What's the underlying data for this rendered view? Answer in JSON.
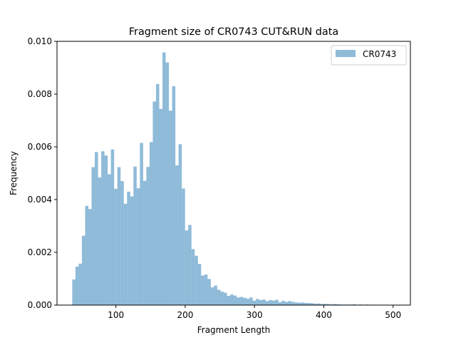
{
  "chart_data": {
    "type": "bar",
    "title": "Fragment size of CR0743 CUT&RUN data",
    "xlabel": "Fragment Length",
    "ylabel": "Frequency",
    "xlim": [
      15,
      525
    ],
    "ylim": [
      0,
      0.01
    ],
    "xticks": [
      100,
      200,
      300,
      400,
      500
    ],
    "yticks": [
      0.0,
      0.002,
      0.004,
      0.006,
      0.008,
      0.01
    ],
    "ytick_labels": [
      "0.000",
      "0.002",
      "0.004",
      "0.006",
      "0.008",
      "0.010"
    ],
    "grid": false,
    "legend_position": "top-right",
    "series": [
      {
        "name": "CR0743",
        "color": "#1f77b4",
        "alpha": 0.5,
        "bin_start": 37,
        "bin_width": 4.65,
        "values": [
          0.00097,
          0.00146,
          0.00157,
          0.00263,
          0.00376,
          0.00364,
          0.00523,
          0.0058,
          0.00484,
          0.00583,
          0.00567,
          0.00496,
          0.0059,
          0.00441,
          0.00523,
          0.0047,
          0.00384,
          0.0043,
          0.00412,
          0.00525,
          0.00443,
          0.00615,
          0.00471,
          0.00524,
          0.00618,
          0.00772,
          0.00838,
          0.00744,
          0.00958,
          0.0092,
          0.00737,
          0.0083,
          0.0053,
          0.0061,
          0.00442,
          0.00283,
          0.00304,
          0.00212,
          0.00187,
          0.00156,
          0.00112,
          0.00116,
          0.00099,
          0.00067,
          0.00074,
          0.00058,
          0.00051,
          0.00047,
          0.00035,
          0.0004,
          0.00036,
          0.00029,
          0.00031,
          0.00028,
          0.00024,
          0.00029,
          0.00017,
          0.00023,
          0.00019,
          0.00021,
          0.00015,
          0.00019,
          0.00017,
          0.0002,
          0.00011,
          0.00016,
          0.00012,
          0.00015,
          0.00012,
          0.0001,
          9e-05,
          0.0001,
          8e-05,
          8e-05,
          7e-05,
          5e-05,
          6e-05,
          4e-05,
          5e-05,
          4e-05,
          3e-05,
          4e-05,
          3e-05,
          2e-05,
          2e-05,
          2e-05,
          2e-05,
          3e-05,
          1e-05,
          2e-05,
          1e-05,
          2e-05,
          1e-05,
          1e-05,
          1e-05,
          1e-05,
          1e-05,
          1e-05,
          1e-05,
          1e-05
        ]
      }
    ]
  }
}
